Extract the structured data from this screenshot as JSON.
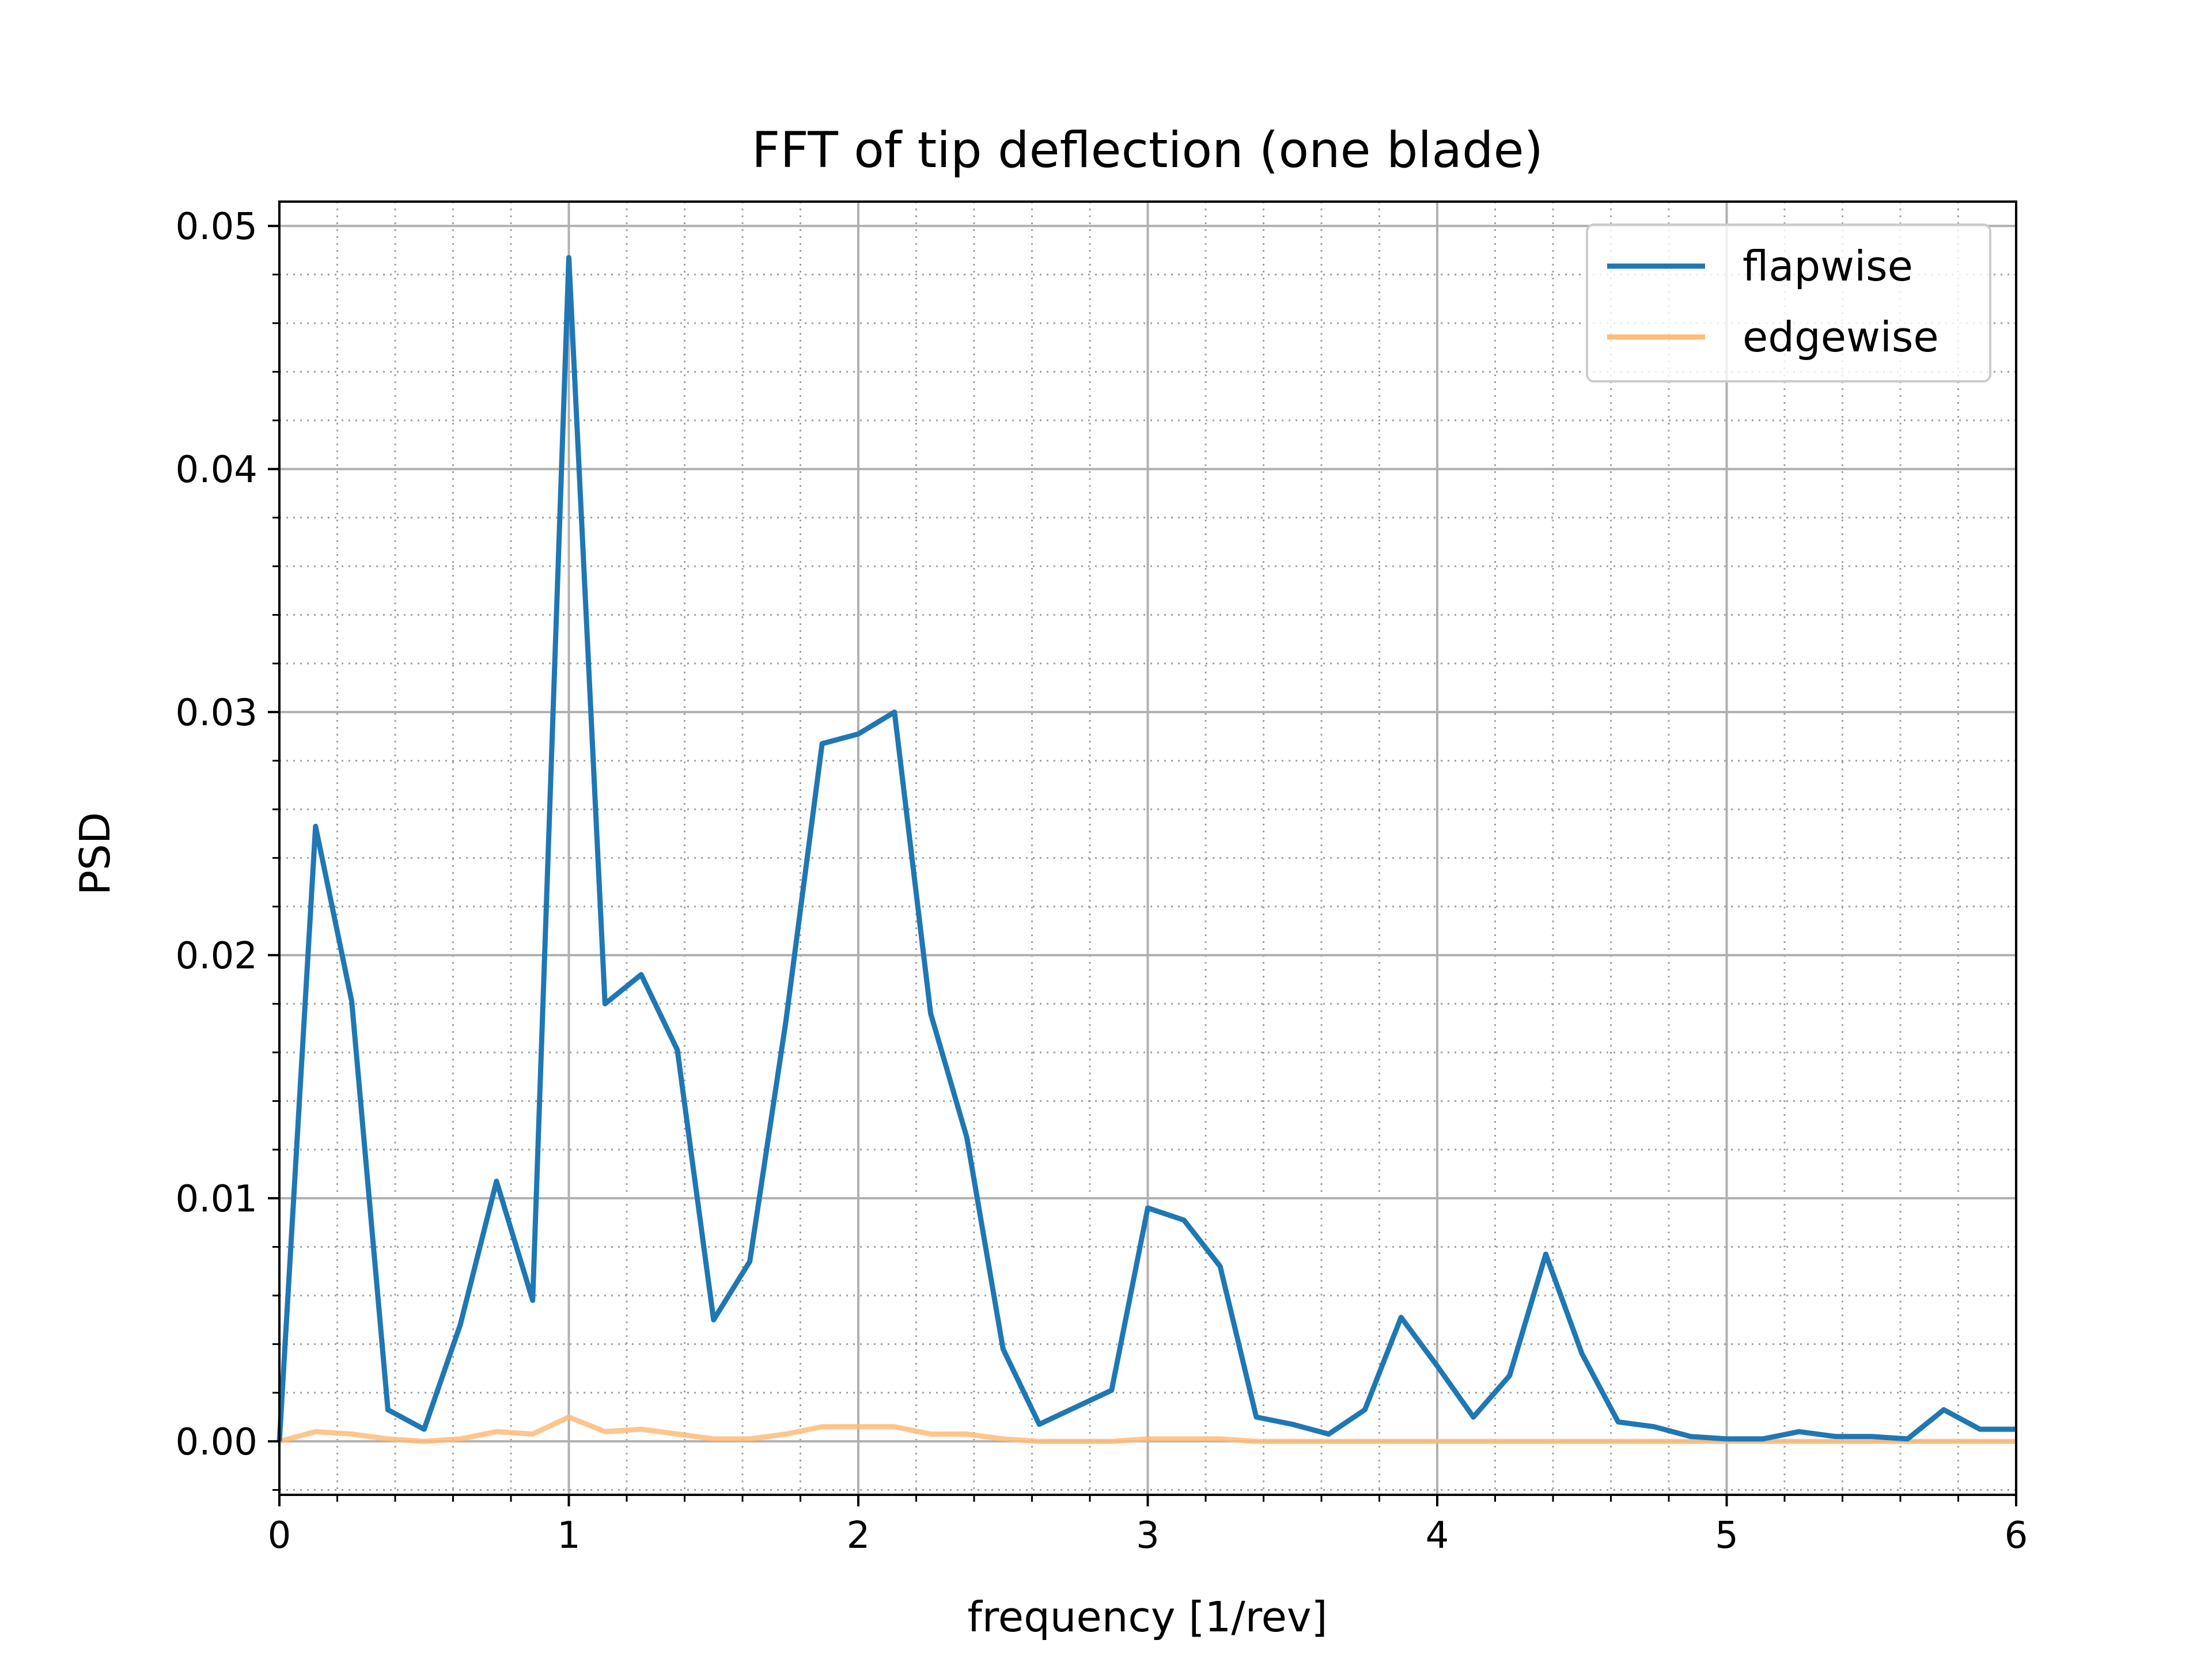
{
  "chart_data": {
    "type": "line",
    "title": "FFT of tip deflection (one blade)",
    "xlabel": "frequency [1/rev]",
    "ylabel": "PSD",
    "xlim": [
      0,
      6
    ],
    "ylim": [
      -0.0022,
      0.051
    ],
    "xticks": [
      0,
      1,
      2,
      3,
      4,
      5,
      6
    ],
    "xtick_labels": [
      "0",
      "1",
      "2",
      "3",
      "4",
      "5",
      "6"
    ],
    "yticks": [
      0.0,
      0.01,
      0.02,
      0.03,
      0.04,
      0.05
    ],
    "ytick_labels": [
      "0.00",
      "0.01",
      "0.02",
      "0.03",
      "0.04",
      "0.05"
    ],
    "grid": true,
    "minor_grid": true,
    "legend_position": "top-right",
    "x": [
      0,
      0.125,
      0.25,
      0.375,
      0.5,
      0.625,
      0.75,
      0.875,
      1.0,
      1.125,
      1.25,
      1.375,
      1.5,
      1.625,
      1.75,
      1.875,
      2.0,
      2.125,
      2.25,
      2.375,
      2.5,
      2.625,
      2.75,
      2.875,
      3.0,
      3.125,
      3.25,
      3.375,
      3.5,
      3.625,
      3.75,
      3.875,
      4.0,
      4.125,
      4.25,
      4.375,
      4.5,
      4.625,
      4.75,
      4.875,
      5.0,
      5.125,
      5.25,
      5.375,
      5.5,
      5.625,
      5.75,
      5.875,
      6.0
    ],
    "series": [
      {
        "name": "flapwise",
        "color": "#1f77b4",
        "values": [
          0.0,
          0.0253,
          0.0181,
          0.0013,
          0.0005,
          0.0048,
          0.0107,
          0.0058,
          0.0487,
          0.018,
          0.0192,
          0.0161,
          0.005,
          0.0074,
          0.0173,
          0.0287,
          0.0291,
          0.03,
          0.0176,
          0.0125,
          0.0038,
          0.0007,
          0.0014,
          0.0021,
          0.0096,
          0.0091,
          0.0072,
          0.001,
          0.0007,
          0.0003,
          0.0013,
          0.0051,
          0.0031,
          0.001,
          0.0027,
          0.0077,
          0.0036,
          0.0008,
          0.0006,
          0.0002,
          0.0001,
          0.0001,
          0.0004,
          0.0002,
          0.0002,
          0.0001,
          0.0013,
          0.0005,
          0.0005
        ]
      },
      {
        "name": "edgewise",
        "color": "#ffbb78",
        "values": [
          0.0,
          0.0004,
          0.0003,
          0.0001,
          0.0,
          0.0001,
          0.0004,
          0.0003,
          0.001,
          0.0004,
          0.0005,
          0.0003,
          0.0001,
          0.0001,
          0.0003,
          0.0006,
          0.0006,
          0.0006,
          0.0003,
          0.0003,
          0.0001,
          0.0,
          0.0,
          0.0,
          0.0001,
          0.0001,
          0.0001,
          0.0,
          0.0,
          0.0,
          0.0,
          0.0,
          0.0,
          0.0,
          0.0,
          0.0,
          0.0,
          0.0,
          0.0,
          0.0,
          0.0,
          0.0,
          0.0,
          0.0,
          0.0,
          0.0,
          0.0,
          0.0,
          0.0
        ]
      }
    ]
  }
}
